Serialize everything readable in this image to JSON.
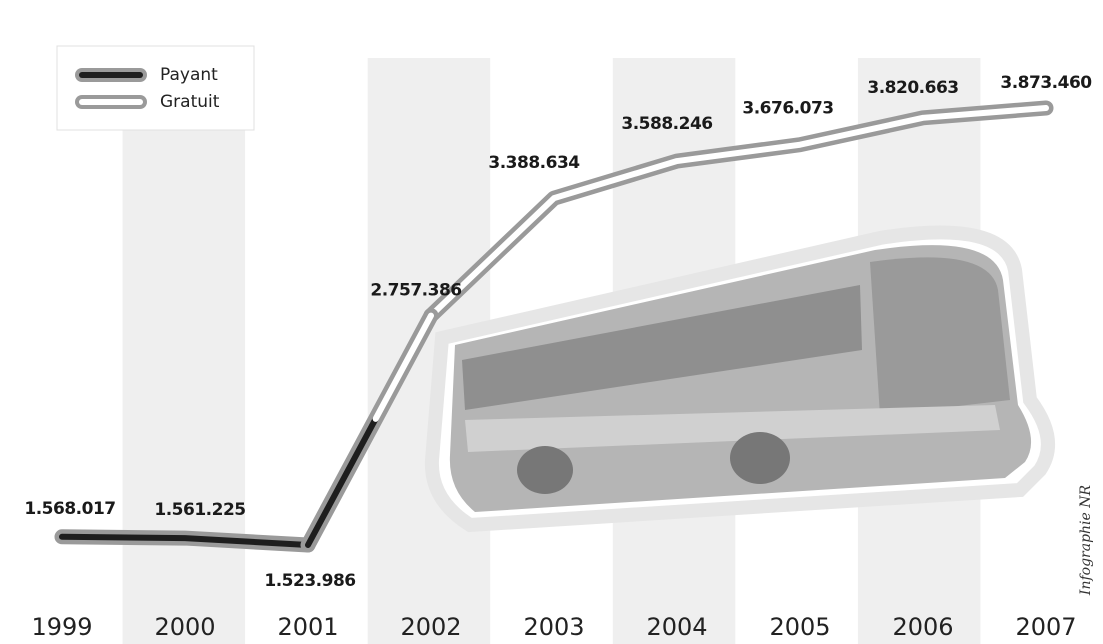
{
  "chart_data": {
    "type": "line",
    "categories": [
      "1999",
      "2000",
      "2001",
      "2002",
      "2003",
      "2004",
      "2005",
      "2006",
      "2007"
    ],
    "series": [
      {
        "name": "Payant",
        "color": "#1e1e1e",
        "values": [
          1568017,
          1561225,
          1523986,
          null,
          null,
          null,
          null,
          null,
          null
        ],
        "value_labels": [
          "1.568.017",
          "1.561.225",
          "1.523.986",
          null,
          null,
          null,
          null,
          null,
          null
        ]
      },
      {
        "name": "Gratuit",
        "color": "#ffffff",
        "values": [
          null,
          null,
          null,
          2757386,
          3388634,
          3588246,
          3676073,
          3820663,
          3873460
        ],
        "value_labels": [
          null,
          null,
          null,
          "2.757.386",
          "3.388.634",
          "3.588.246",
          "3.676.073",
          "3.820.663",
          "3.873.460"
        ]
      }
    ],
    "outline_color": "#9a9a9a",
    "credit": "Infographie NR"
  }
}
